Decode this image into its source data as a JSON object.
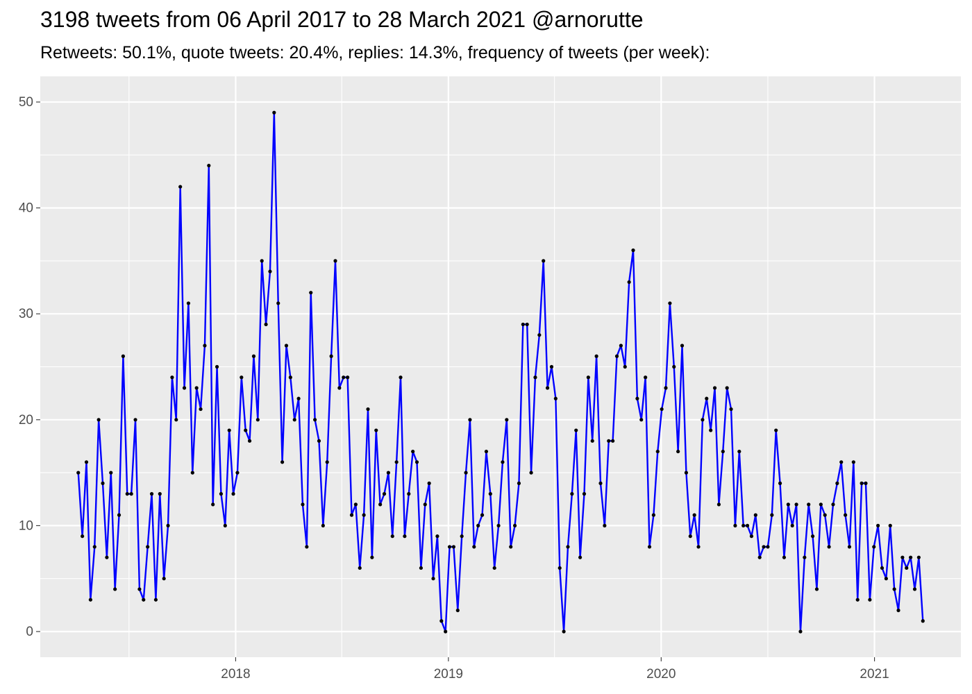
{
  "chart_data": {
    "type": "line",
    "title": "3198 tweets from 06 April 2017 to 28 March 2021 @arnorutte",
    "subtitle": "Retweets: 50.1%, quote tweets: 20.4%, replies: 14.3%, frequency of tweets (per week):",
    "xlabel": "",
    "ylabel": "",
    "x_start": "2017-04-06",
    "x_step": "1 week",
    "x_ticks": [
      "2018",
      "2019",
      "2020",
      "2021"
    ],
    "y_ticks": [
      0,
      10,
      20,
      30,
      40,
      50
    ],
    "ylim": [
      0,
      50
    ],
    "grid": true,
    "legend": "none",
    "line_color": "#0000ff",
    "point_color": "#000000",
    "panel_color": "#ebebeb",
    "series": [
      {
        "values": [
          15,
          9,
          16,
          3,
          8,
          20,
          14,
          7,
          15,
          4,
          11,
          26,
          13,
          13,
          20,
          4,
          3,
          8,
          13,
          3,
          13,
          5,
          10,
          24,
          20,
          42,
          23,
          31,
          15,
          23,
          21,
          27,
          44,
          12,
          25,
          13,
          10,
          19,
          13,
          15,
          24,
          19,
          18,
          26,
          20,
          35,
          29,
          34,
          49,
          31,
          16,
          27,
          24,
          20,
          22,
          12,
          8,
          32,
          20,
          18,
          10,
          16,
          26,
          35,
          23,
          24,
          24,
          11,
          12,
          6,
          11,
          21,
          7,
          19,
          12,
          13,
          15,
          9,
          16,
          24,
          9,
          13,
          17,
          16,
          6,
          12,
          14,
          5,
          9,
          1,
          0,
          8,
          8,
          2,
          9,
          15,
          20,
          8,
          10,
          11,
          17,
          13,
          6,
          10,
          16,
          20,
          8,
          10,
          14,
          29,
          29,
          15,
          24,
          28,
          35,
          23,
          25,
          22,
          6,
          0,
          8,
          13,
          19,
          7,
          13,
          24,
          18,
          26,
          14,
          10,
          18,
          18,
          26,
          27,
          25,
          33,
          36,
          22,
          20,
          24,
          8,
          11,
          17,
          21,
          23,
          31,
          25,
          17,
          27,
          15,
          9,
          11,
          8,
          20,
          22,
          19,
          23,
          12,
          17,
          23,
          21,
          10,
          17,
          10,
          10,
          9,
          11,
          7,
          8,
          8,
          11,
          19,
          14,
          7,
          12,
          10,
          12,
          0,
          7,
          12,
          9,
          4,
          12,
          11,
          8,
          12,
          14,
          16,
          11,
          8,
          16,
          3,
          14,
          14,
          3,
          8,
          10,
          6,
          5,
          10,
          4,
          2,
          7,
          6,
          7,
          4,
          7,
          1
        ]
      }
    ]
  }
}
